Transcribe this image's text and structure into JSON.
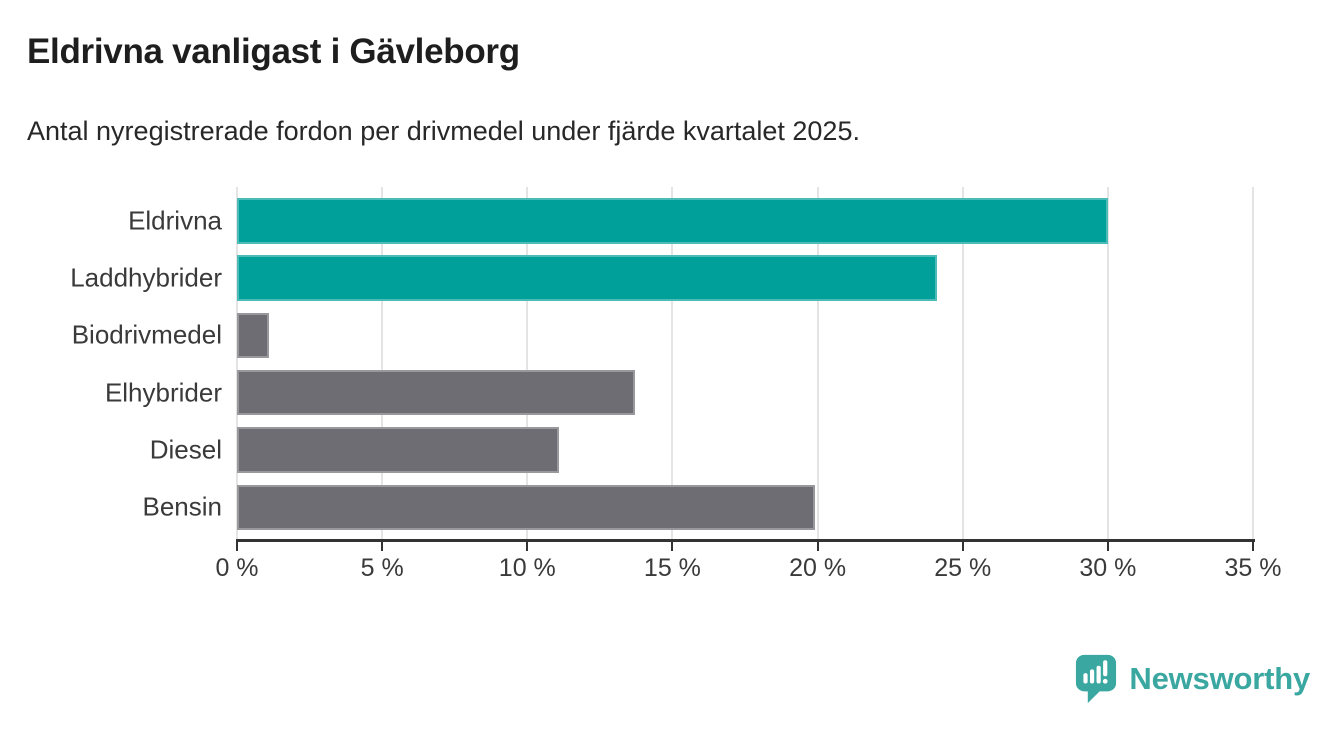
{
  "header": {
    "title": "Eldrivna vanligast i Gävleborg",
    "subtitle": "Antal nyregistrerade fordon per drivmedel under fjärde kvartalet 2025."
  },
  "chart_data": {
    "type": "bar",
    "orientation": "horizontal",
    "title": "Eldrivna vanligast i Gävleborg",
    "subtitle": "Antal nyregistrerade fordon per drivmedel under fjärde kvartalet 2025.",
    "categories": [
      "Eldrivna",
      "Laddhybrider",
      "Biodrivmedel",
      "Elhybrider",
      "Diesel",
      "Bensin"
    ],
    "values": [
      30.0,
      24.1,
      1.1,
      13.7,
      11.1,
      19.9
    ],
    "unit": "%",
    "bar_colors": [
      "#00a09a",
      "#00a09a",
      "#6d6d73",
      "#6d6d73",
      "#6d6d73",
      "#6d6d73"
    ],
    "highlight_color": "#00a09a",
    "default_color": "#6d6d73",
    "xlim": [
      0,
      35
    ],
    "xticks": [
      0,
      5,
      10,
      15,
      20,
      25,
      30,
      35
    ],
    "xtick_labels": [
      "0 %",
      "5 %",
      "10 %",
      "15 %",
      "20 %",
      "25 %",
      "30 %",
      "35 %"
    ],
    "grid": "vertical",
    "grid_color": "#e4e4e4",
    "axis_color": "#333333",
    "legend": "none"
  },
  "footer": {
    "brand": "Newsworthy",
    "brand_color": "#3aa7a1"
  }
}
